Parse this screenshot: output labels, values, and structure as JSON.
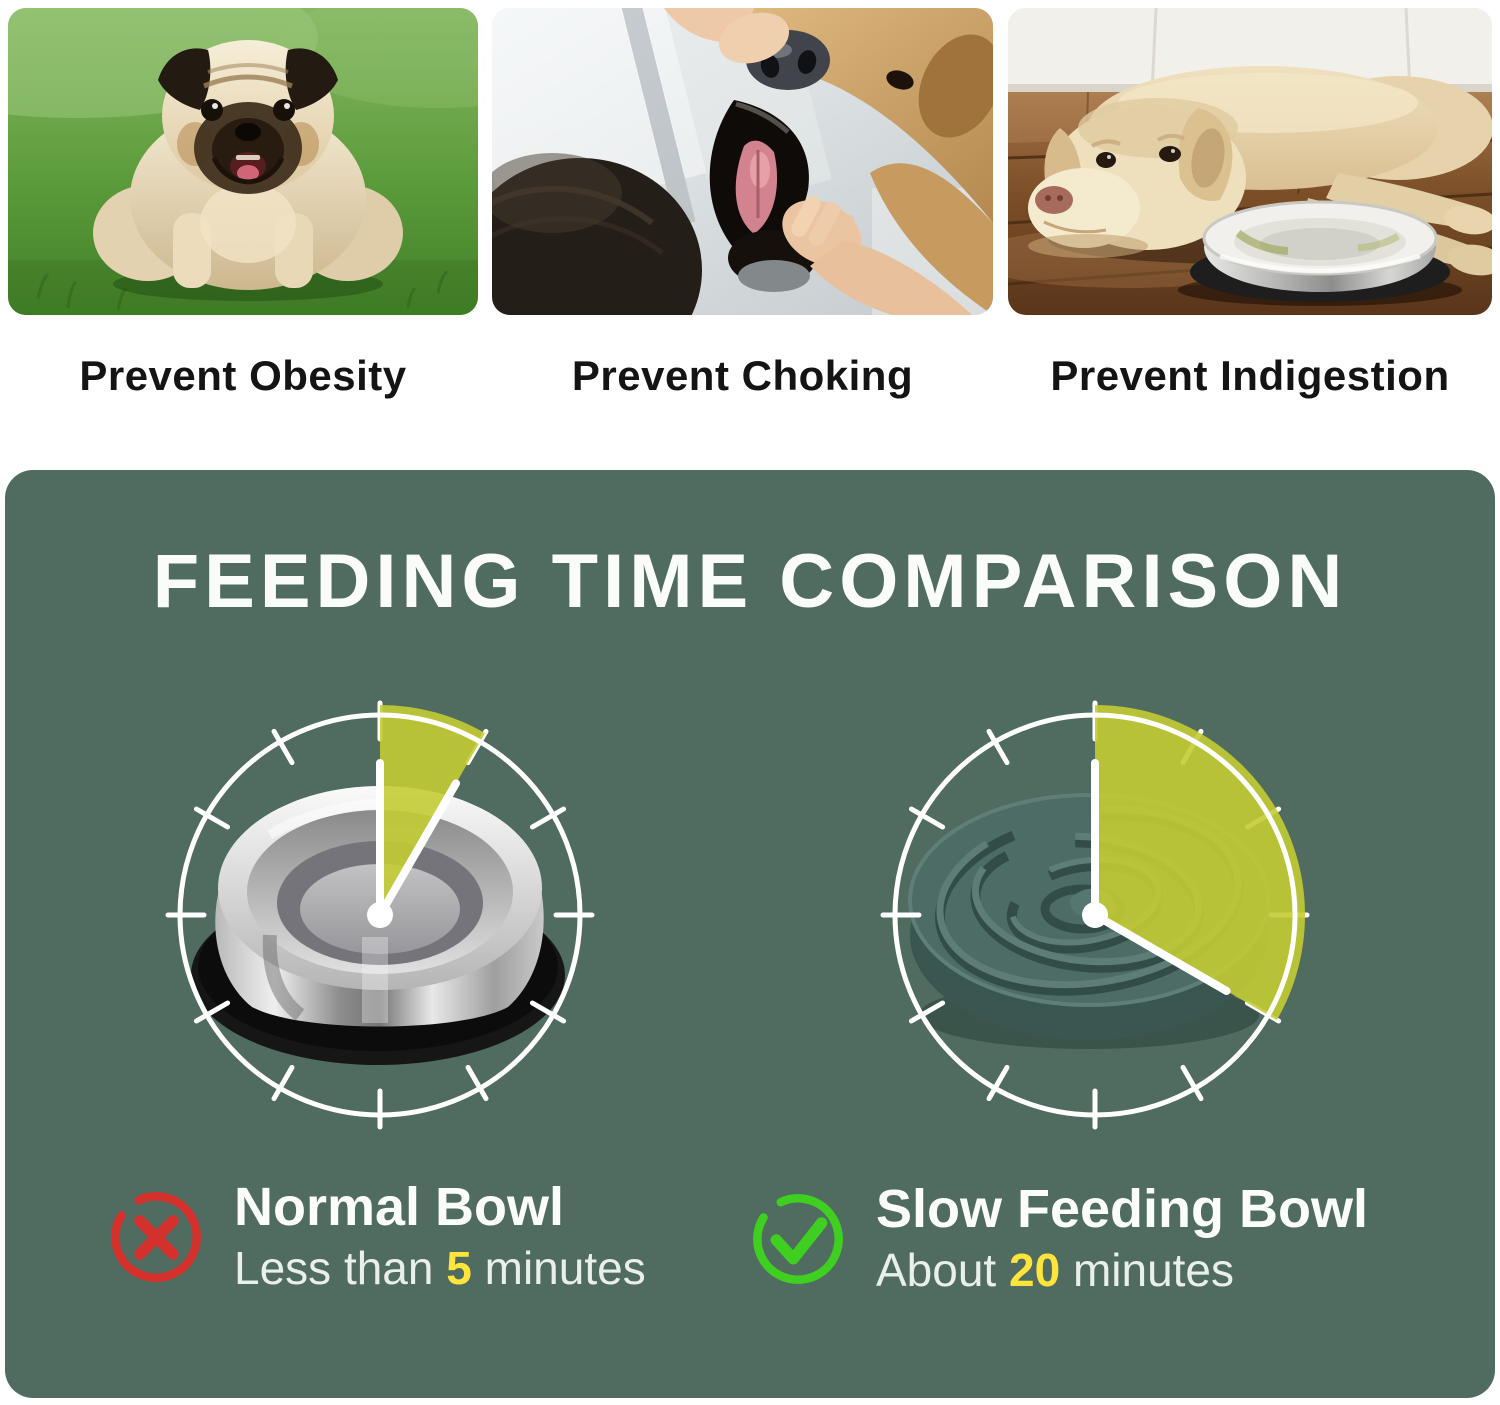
{
  "benefits": {
    "items": [
      {
        "caption": "Prevent Obesity",
        "photo": "obese-pug-on-grass-photo"
      },
      {
        "caption": "Prevent Choking",
        "photo": "hand-checking-dog-mouth-photo"
      },
      {
        "caption": "Prevent Indigestion",
        "photo": "dog-lying-by-bowl-photo"
      }
    ]
  },
  "comparison": {
    "title": "FEEDING TIME COMPARISON",
    "panel_color": "#506b60",
    "wedge_color": "#c3cc33",
    "highlight_color": "#ffe43c",
    "clocks": [
      {
        "name": "normal-bowl-clock",
        "minutes": 5,
        "wedge_start_deg": 0,
        "wedge_end_deg": 30,
        "ticks": 12
      },
      {
        "name": "slow-bowl-clock",
        "minutes": 20,
        "wedge_start_deg": 0,
        "wedge_end_deg": 120,
        "ticks": 12
      }
    ],
    "verdicts": [
      {
        "icon": "x-circle-icon",
        "icon_color": "#d5312c",
        "label": "Normal Bowl",
        "time_prefix": "Less than ",
        "time_value": "5",
        "time_suffix": " minutes"
      },
      {
        "icon": "check-circle-icon",
        "icon_color": "#3fcf20",
        "label": "Slow Feeding Bowl",
        "time_prefix": "About ",
        "time_value": "20",
        "time_suffix": " minutes"
      }
    ]
  }
}
